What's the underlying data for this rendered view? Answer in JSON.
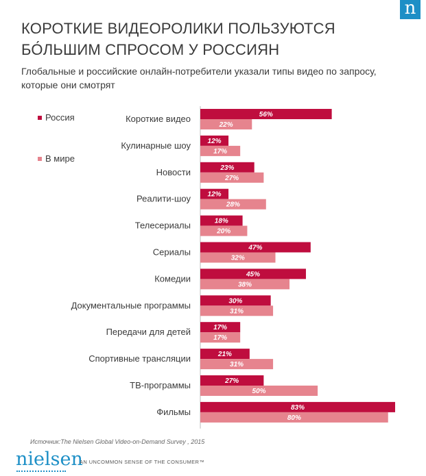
{
  "brand_mark": "n",
  "title_line1": "КОРОТКИЕ ВИДЕОРОЛИКИ ПОЛЬЗУЮТСЯ",
  "title_line2": "БО́ЛЬШИМ СПРОСОМ У РОССИЯН",
  "subtitle": "Глобальные и российские онлайн-потребители указали типы видео по запросу, которые они смотрят",
  "source": "Источник:The Nielsen Global Video-on-Demand Survey , 2015",
  "logo_text": "nielsen",
  "tagline": "AN UNCOMMON SENSE OF THE CONSUMER™",
  "colors": {
    "russia": "#bf0d3e",
    "world": "#e6848e",
    "brand": "#1d8fc6"
  },
  "chart_data": {
    "type": "bar",
    "orientation": "horizontal",
    "unit": "%",
    "categories": [
      "Короткие видео",
      "Кулинарные шоу",
      "Новости",
      "Реалити-шоу",
      "Телесериалы",
      "Сериалы",
      "Комедии",
      "Документальные программы",
      "Передачи для детей",
      "Спортивные трансляции",
      "ТВ-программы",
      "Фильмы"
    ],
    "series": [
      {
        "name": "Россия",
        "values": [
          56,
          12,
          23,
          12,
          18,
          47,
          45,
          30,
          17,
          21,
          27,
          83
        ]
      },
      {
        "name": "В мире",
        "values": [
          22,
          17,
          27,
          28,
          20,
          32,
          38,
          31,
          17,
          31,
          50,
          80
        ]
      }
    ],
    "xlim": [
      0,
      83
    ],
    "legend_position": "top-left"
  }
}
